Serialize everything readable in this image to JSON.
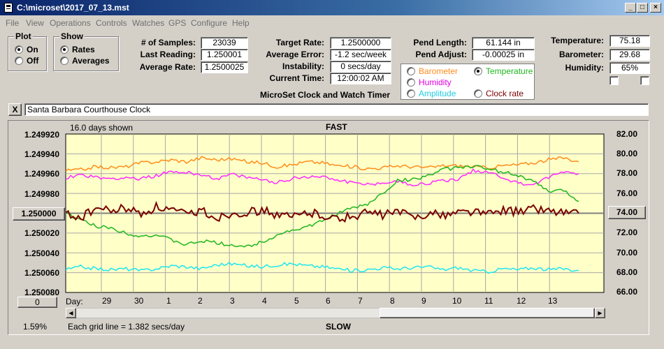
{
  "window": {
    "title": "C:\\microset\\2017_07_13.mst"
  },
  "menu": [
    "File",
    "View",
    "Operations",
    "Controls",
    "Watches",
    "GPS",
    "Configure",
    "Help"
  ],
  "plot_group": {
    "title": "Plot",
    "on_label": "On",
    "off_label": "Off",
    "selected": "On"
  },
  "show_group": {
    "title": "Show",
    "rates_label": "Rates",
    "averages_label": "Averages",
    "selected": "Rates"
  },
  "stats": {
    "samples_label": "# of Samples:",
    "samples": "23039",
    "last_label": "Last Reading:",
    "last": "1.250001",
    "avg_rate_label": "Average Rate:",
    "avg_rate": "1.2500025",
    "target_label": "Target Rate:",
    "target": "1.2500000",
    "avg_err_label": "Average Error:",
    "avg_err": "-1.2 sec/week",
    "instab_label": "Instability:",
    "instab": "0 secs/day",
    "time_label": "Current Time:",
    "time": "12:00:02 AM",
    "pend_len_label": "Pend Length:",
    "pend_len": "61.144 in",
    "pend_adj_label": "Pend Adjust:",
    "pend_adj": "-0.00025 in",
    "temp_label": "Temperature:",
    "temp": "75.18",
    "baro_label": "Barometer:",
    "baro": "29.68",
    "humid_label": "Humidity:",
    "humid": "65%"
  },
  "app_caption": "MicroSet Clock and Watch Timer",
  "series_group": {
    "barometer": "Barometer",
    "temperature": "Temperature",
    "humidity": "Humidity",
    "amplitude": "Amplitude",
    "clock_rate": "Clock rate",
    "selected": "Temperature"
  },
  "clock_name": {
    "close": "X",
    "value": "Santa Barbara Courthouse Clock"
  },
  "chart_labels": {
    "days_shown": "16.0 days shown",
    "fast": "FAST",
    "slow": "SLOW",
    "grid_note": "Each grid line = 1.382 secs/day",
    "percent": "1.59%",
    "day_label": "Day:",
    "center_value": "1.250000",
    "right_center": "74.00",
    "zero_btn": "0"
  },
  "colors": {
    "plot_bg": "#ffffc8",
    "barometer": "#ff8c1a",
    "temperature": "#1fb51f",
    "humidity": "#ff2aff",
    "amplitude": "#1ee6f0",
    "clock_rate": "#7a0000"
  },
  "chart_data": {
    "type": "line",
    "title": "",
    "x_days": [
      "29",
      "30",
      "1",
      "2",
      "3",
      "4",
      "5",
      "6",
      "7",
      "8",
      "9",
      "10",
      "11",
      "12",
      "13"
    ],
    "y_left_ticks": [
      "1.249920",
      "1.249940",
      "1.249960",
      "1.249980",
      "1.250000",
      "1.250020",
      "1.250040",
      "1.250060",
      "1.250080"
    ],
    "y_right_ticks": [
      "82.00",
      "80.00",
      "78.00",
      "76.00",
      "74.00",
      "72.00",
      "70.00",
      "68.00",
      "66.00"
    ],
    "ylim_right": [
      66,
      82
    ],
    "grid": true,
    "x_day_range": [
      0,
      16
    ],
    "series": [
      {
        "color_key": "barometer",
        "values": [
          [
            0,
            78.3
          ],
          [
            1,
            78.4
          ],
          [
            2,
            78.7
          ],
          [
            3,
            78.6
          ],
          [
            4,
            78.7
          ],
          [
            5,
            79.1
          ],
          [
            6,
            79.2
          ],
          [
            7,
            79.4
          ],
          [
            8,
            79.2
          ],
          [
            9,
            79.6
          ],
          [
            10,
            79.4
          ],
          [
            11,
            79.5
          ],
          [
            12,
            79.2
          ],
          [
            13,
            79.1
          ],
          [
            14,
            78.7
          ],
          [
            15,
            78.9
          ],
          [
            16,
            79.2
          ],
          [
            17,
            79.1
          ],
          [
            18,
            78.8
          ],
          [
            19,
            78.7
          ],
          [
            20,
            78.5
          ],
          [
            21,
            78.6
          ],
          [
            22,
            78.8
          ],
          [
            23,
            78.7
          ],
          [
            24,
            78.6
          ],
          [
            25,
            78.8
          ],
          [
            26,
            78.8
          ],
          [
            27,
            78.7
          ],
          [
            28,
            78.6
          ],
          [
            29,
            78.8
          ],
          [
            30,
            78.9
          ],
          [
            31,
            79.1
          ],
          [
            32,
            79.4
          ],
          [
            33,
            79.6
          ],
          [
            34,
            79.2
          ]
        ]
      },
      {
        "color_key": "humidity",
        "values": [
          [
            0,
            77.6
          ],
          [
            1,
            77.9
          ],
          [
            2,
            77.6
          ],
          [
            3,
            77.5
          ],
          [
            4,
            77.6
          ],
          [
            5,
            77.5
          ],
          [
            6,
            77.8
          ],
          [
            7,
            78.2
          ],
          [
            8,
            78.1
          ],
          [
            9,
            77.9
          ],
          [
            10,
            77.5
          ],
          [
            11,
            77.9
          ],
          [
            12,
            77.6
          ],
          [
            13,
            77.4
          ],
          [
            14,
            77.1
          ],
          [
            15,
            77.5
          ],
          [
            16,
            77.7
          ],
          [
            17,
            77.7
          ],
          [
            18,
            77.4
          ],
          [
            19,
            77.1
          ],
          [
            20,
            76.9
          ],
          [
            21,
            77.1
          ],
          [
            22,
            77.2
          ],
          [
            23,
            76.9
          ],
          [
            24,
            77.0
          ],
          [
            25,
            77.3
          ],
          [
            26,
            77.4
          ],
          [
            27,
            78.3
          ],
          [
            28,
            78.2
          ],
          [
            29,
            77.6
          ],
          [
            30,
            77.0
          ],
          [
            31,
            76.9
          ],
          [
            32,
            77.6
          ],
          [
            33,
            78.2
          ],
          [
            34,
            78.0
          ]
        ]
      },
      {
        "color_key": "temperature",
        "values": [
          [
            0,
            74.0
          ],
          [
            1,
            73.3
          ],
          [
            2,
            72.7
          ],
          [
            3,
            72.5
          ],
          [
            4,
            72.0
          ],
          [
            5,
            71.7
          ],
          [
            6,
            71.8
          ],
          [
            7,
            71.3
          ],
          [
            8,
            70.8
          ],
          [
            9,
            71.2
          ],
          [
            10,
            71.0
          ],
          [
            11,
            70.8
          ],
          [
            12,
            70.6
          ],
          [
            13,
            71.1
          ],
          [
            14,
            71.8
          ],
          [
            15,
            72.3
          ],
          [
            16,
            72.6
          ],
          [
            17,
            73.2
          ],
          [
            18,
            74.0
          ],
          [
            19,
            74.5
          ],
          [
            20,
            74.9
          ],
          [
            21,
            76.0
          ],
          [
            22,
            77.3
          ],
          [
            23,
            77.4
          ],
          [
            24,
            77.8
          ],
          [
            25,
            78.4
          ],
          [
            26,
            78.6
          ],
          [
            27,
            78.8
          ],
          [
            28,
            78.4
          ],
          [
            29,
            78.2
          ],
          [
            30,
            77.8
          ],
          [
            31,
            77.2
          ],
          [
            32,
            76.2
          ],
          [
            33,
            76.3
          ],
          [
            34,
            75.2
          ]
        ]
      },
      {
        "color_key": "clock_rate",
        "values": [
          [
            0,
            74.0
          ],
          [
            1,
            73.5
          ],
          [
            2,
            74.5
          ],
          [
            3,
            74.2
          ],
          [
            4,
            74.5
          ],
          [
            5,
            73.9
          ],
          [
            6,
            74.6
          ],
          [
            7,
            74.3
          ],
          [
            8,
            73.8
          ],
          [
            9,
            74.3
          ],
          [
            10,
            73.5
          ],
          [
            11,
            74.0
          ],
          [
            12,
            74.1
          ],
          [
            13,
            74.3
          ],
          [
            14,
            73.8
          ],
          [
            15,
            73.6
          ],
          [
            16,
            74.1
          ],
          [
            17,
            73.9
          ],
          [
            18,
            73.4
          ],
          [
            19,
            73.7
          ],
          [
            20,
            74.1
          ],
          [
            21,
            73.8
          ],
          [
            22,
            74.2
          ],
          [
            23,
            73.6
          ],
          [
            24,
            74.0
          ],
          [
            25,
            73.8
          ],
          [
            26,
            74.1
          ],
          [
            27,
            74.2
          ],
          [
            28,
            73.9
          ],
          [
            29,
            74.4
          ],
          [
            30,
            74.1
          ],
          [
            31,
            74.5
          ],
          [
            32,
            74.3
          ],
          [
            33,
            74.1
          ],
          [
            34,
            74.0
          ]
        ]
      },
      {
        "color_key": "amplitude",
        "values": [
          [
            0,
            68.3
          ],
          [
            1,
            68.6
          ],
          [
            2,
            68.4
          ],
          [
            3,
            68.3
          ],
          [
            4,
            68.4
          ],
          [
            5,
            68.2
          ],
          [
            6,
            68.4
          ],
          [
            7,
            68.7
          ],
          [
            8,
            68.6
          ],
          [
            9,
            68.4
          ],
          [
            10,
            68.8
          ],
          [
            11,
            68.9
          ],
          [
            12,
            68.7
          ],
          [
            13,
            68.6
          ],
          [
            14,
            68.8
          ],
          [
            15,
            68.9
          ],
          [
            16,
            68.7
          ],
          [
            17,
            68.6
          ],
          [
            18,
            68.4
          ],
          [
            19,
            68.2
          ],
          [
            20,
            68.3
          ],
          [
            21,
            68.5
          ],
          [
            22,
            68.4
          ],
          [
            23,
            68.5
          ],
          [
            24,
            68.6
          ],
          [
            25,
            68.3
          ],
          [
            26,
            68.5
          ],
          [
            27,
            68.2
          ],
          [
            28,
            68.1
          ],
          [
            29,
            68.4
          ],
          [
            30,
            68.3
          ],
          [
            31,
            68.5
          ],
          [
            32,
            68.3
          ],
          [
            33,
            68.4
          ],
          [
            34,
            68.2
          ]
        ]
      }
    ]
  }
}
